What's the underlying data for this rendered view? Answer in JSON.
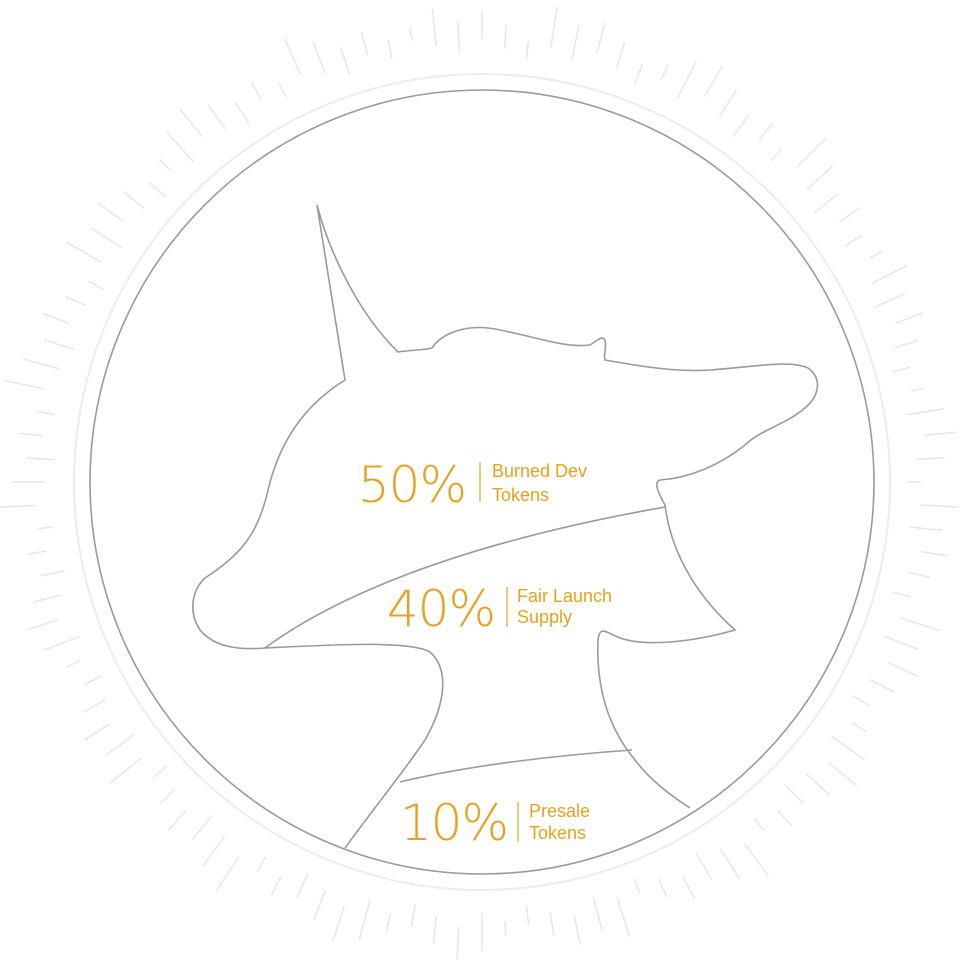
{
  "segments": [
    {
      "percent": "50%",
      "label": [
        "Burned Dev",
        "Tokens"
      ]
    },
    {
      "percent": "40%",
      "label": [
        "Fair Launch",
        "Supply"
      ]
    },
    {
      "percent": "10%",
      "label": [
        "Presale",
        "Tokens"
      ]
    }
  ]
}
